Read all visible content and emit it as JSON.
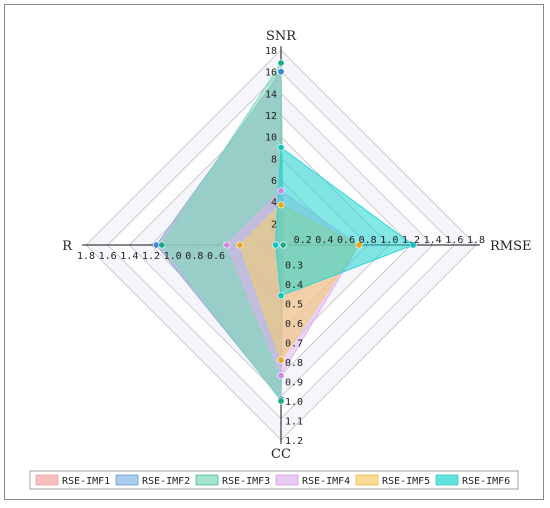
{
  "chart_data": {
    "type": "radar",
    "axes": [
      {
        "name": "SNR",
        "ticks": [
          "18",
          "16",
          "14",
          "12",
          "10",
          "8",
          "6",
          "4",
          "2"
        ],
        "range": [
          0,
          18
        ]
      },
      {
        "name": "RMSE",
        "ticks": [
          "0.2",
          "0.4",
          "0.6",
          "0.8",
          "1.0",
          "1.2",
          "1.4",
          "1.6",
          "1.8"
        ],
        "range": [
          0,
          1.8
        ]
      },
      {
        "name": "CC",
        "ticks": [
          "0.3",
          "0.4",
          "0.5",
          "0.6",
          "0.7",
          "0.8",
          "0.9",
          "1.0",
          "1.1",
          "1.2"
        ],
        "range": [
          0.2,
          1.2
        ]
      },
      {
        "name": "R",
        "ticks": [
          "1.8",
          "1.6",
          "1.4",
          "1.2",
          "1.0",
          "0.8",
          "0.6"
        ],
        "range": [
          0,
          1.8
        ]
      }
    ],
    "series": [
      {
        "name": "RSE-IMF1",
        "color": "#f4a6a6",
        "values": {
          "SNR": 16.0,
          "RMSE": 0.02,
          "CC": 0.99,
          "R": 1.15
        }
      },
      {
        "name": "RSE-IMF2",
        "color": "#86b6e6",
        "values": {
          "SNR": 16.0,
          "RMSE": 0.02,
          "CC": 0.99,
          "R": 1.15
        }
      },
      {
        "name": "RSE-IMF3",
        "color": "#7fd8b8",
        "values": {
          "SNR": 16.8,
          "RMSE": 0.02,
          "CC": 1.0,
          "R": 1.1
        }
      },
      {
        "name": "RSE-IMF4",
        "color": "#e0b0ec",
        "values": {
          "SNR": 5.0,
          "RMSE": 0.72,
          "CC": 0.87,
          "R": 0.5
        }
      },
      {
        "name": "RSE-IMF5",
        "color": "#f6cc6a",
        "values": {
          "SNR": 3.7,
          "RMSE": 0.72,
          "CC": 0.79,
          "R": 0.38
        }
      },
      {
        "name": "RSE-IMF6",
        "color": "#1fd6d0",
        "values": {
          "SNR": 9.0,
          "RMSE": 1.22,
          "CC": 0.46,
          "R": 0.05
        }
      }
    ]
  }
}
